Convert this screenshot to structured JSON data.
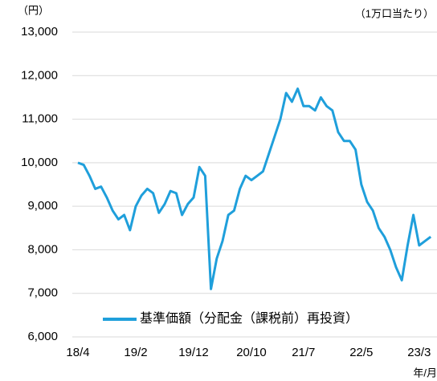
{
  "chart_data": {
    "type": "line",
    "y_unit_label": "（円）",
    "note": "（1万口当たり）",
    "x_unit_label": "年/月",
    "categories": [
      "18/4",
      null,
      null,
      null,
      null,
      null,
      null,
      null,
      null,
      null,
      "19/2",
      null,
      null,
      null,
      null,
      null,
      null,
      null,
      null,
      null,
      "19/12",
      null,
      null,
      null,
      null,
      null,
      null,
      null,
      null,
      null,
      "20/10",
      null,
      null,
      null,
      null,
      null,
      null,
      null,
      null,
      "21/7",
      null,
      null,
      null,
      null,
      null,
      null,
      null,
      null,
      null,
      "22/5",
      null,
      null,
      null,
      null,
      null,
      null,
      null,
      null,
      null,
      "23/3",
      null,
      null
    ],
    "series": [
      {
        "name": "基準価額（分配金（課税前）再投資）",
        "color": "#1f9fdb",
        "values": [
          10000,
          9950,
          9700,
          9400,
          9450,
          9200,
          8900,
          8700,
          8800,
          8450,
          9000,
          9250,
          9400,
          9300,
          8850,
          9050,
          9350,
          9300,
          8800,
          9050,
          9200,
          9900,
          9700,
          7100,
          7800,
          8200,
          8800,
          8900,
          9400,
          9700,
          9600,
          9700,
          9800,
          10200,
          10600,
          11000,
          11600,
          11400,
          11700,
          11300,
          11300,
          11200,
          11500,
          11300,
          11200,
          10700,
          10500,
          10500,
          10300,
          9500,
          9100,
          8900,
          8500,
          8300,
          8000,
          7600,
          7300,
          8100,
          8800,
          8100,
          8200,
          8300
        ]
      }
    ],
    "ylim": [
      6000,
      13000
    ],
    "yticks": [
      {
        "value": 6000,
        "label": "6,000"
      },
      {
        "value": 7000,
        "label": "7,000"
      },
      {
        "value": 8000,
        "label": "8,000"
      },
      {
        "value": 9000,
        "label": "9,000"
      },
      {
        "value": 10000,
        "label": "10,000"
      },
      {
        "value": 11000,
        "label": "11,000"
      },
      {
        "value": 12000,
        "label": "12,000"
      },
      {
        "value": 13000,
        "label": "13,000"
      }
    ],
    "grid": true
  }
}
